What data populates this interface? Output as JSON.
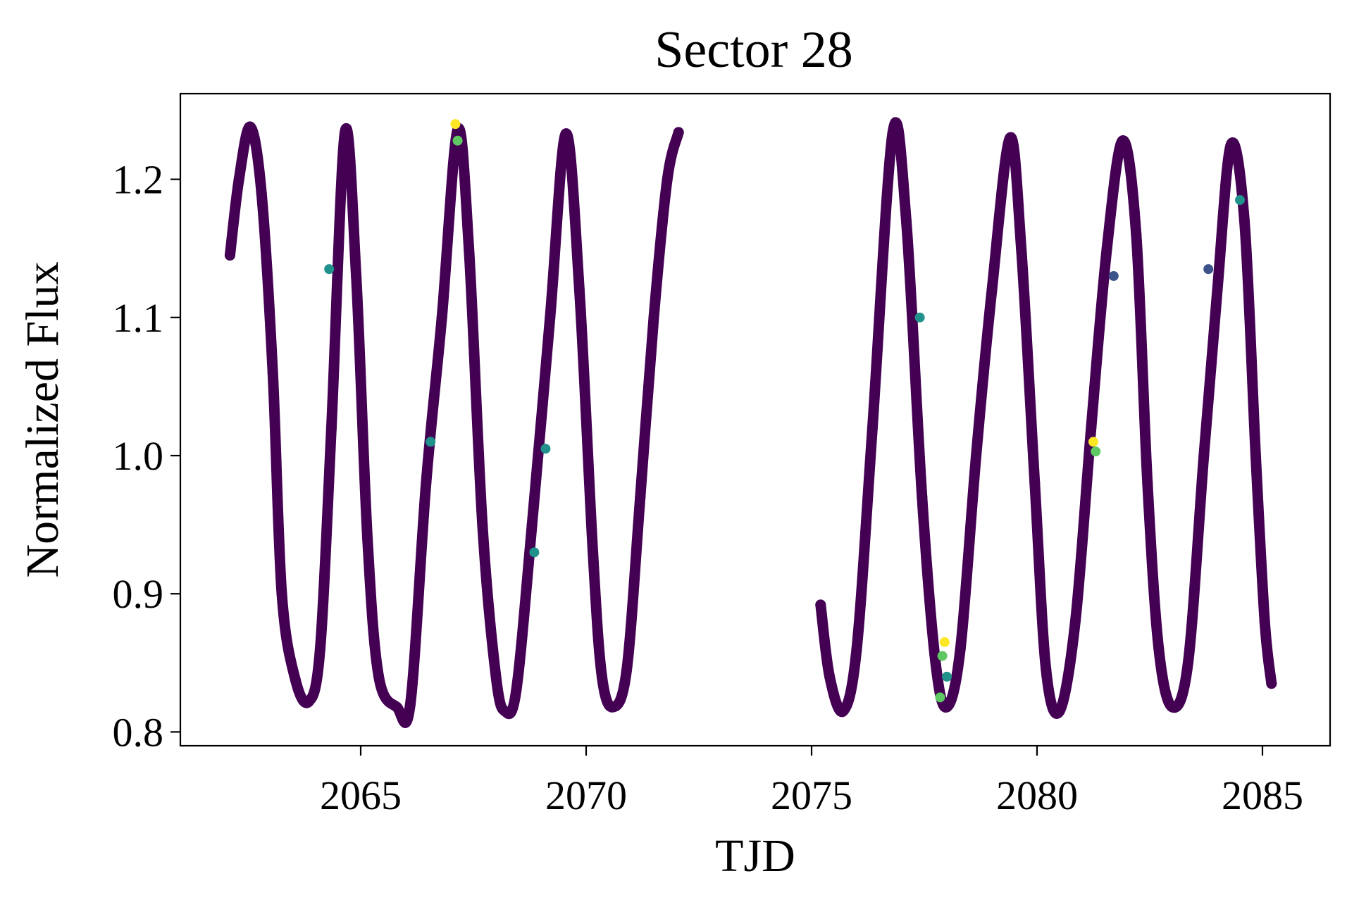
{
  "chart_data": {
    "type": "scatter",
    "title": "Sector 28",
    "xlabel": "TJD",
    "ylabel": "Normalized Flux",
    "xlim": [
      2061.0,
      2086.5
    ],
    "ylim": [
      0.79,
      1.262
    ],
    "xticks": [
      2065,
      2070,
      2075,
      2080,
      2085
    ],
    "xtick_labels": [
      "2065",
      "2070",
      "2075",
      "2080",
      "2085"
    ],
    "yticks": [
      0.8,
      0.9,
      1.0,
      1.1,
      1.2
    ],
    "ytick_labels": [
      "0.8",
      "0.9",
      "1.0",
      "1.1",
      "1.2"
    ],
    "grid": false,
    "legend": "none",
    "colormap": "viridis",
    "main_color": "#440154",
    "highlight_colors": [
      "#21918c",
      "#3b528b",
      "#5ec962",
      "#fde725"
    ],
    "segments": [
      {
        "x": [
          2062.1,
          2062.3,
          2062.55,
          2062.8,
          2063.05,
          2063.25,
          2063.55,
          2063.85,
          2064.1,
          2064.35,
          2064.65,
          2064.9,
          2065.15,
          2065.4,
          2065.8,
          2066.1,
          2066.45,
          2066.8,
          2067.15,
          2067.4,
          2067.7,
          2068.0,
          2068.2,
          2068.45,
          2068.8,
          2069.2,
          2069.55,
          2069.85,
          2070.15,
          2070.35,
          2070.6,
          2070.9,
          2071.2,
          2071.5,
          2071.8,
          2072.05
        ],
        "y": [
          1.145,
          1.2,
          1.238,
          1.19,
          1.06,
          0.9,
          0.838,
          0.822,
          0.86,
          1.02,
          1.234,
          1.13,
          0.94,
          0.84,
          0.818,
          0.82,
          0.98,
          1.1,
          1.236,
          1.15,
          0.95,
          0.84,
          0.815,
          0.83,
          0.95,
          1.1,
          1.233,
          1.12,
          0.93,
          0.84,
          0.818,
          0.845,
          0.97,
          1.1,
          1.2,
          1.234
        ]
      },
      {
        "x": [
          2075.2,
          2075.4,
          2075.7,
          2076.0,
          2076.35,
          2076.8,
          2077.1,
          2077.45,
          2077.75,
          2078.0,
          2078.3,
          2078.65,
          2079.0,
          2079.4,
          2079.65,
          2079.95,
          2080.2,
          2080.5,
          2080.85,
          2081.2,
          2081.55,
          2081.9,
          2082.2,
          2082.45,
          2082.7,
          2083.0,
          2083.35,
          2083.7,
          2084.0,
          2084.3,
          2084.6,
          2084.85,
          2085.05,
          2085.2
        ],
        "y": [
          0.892,
          0.84,
          0.815,
          0.86,
          1.02,
          1.234,
          1.17,
          0.97,
          0.85,
          0.818,
          0.86,
          1.0,
          1.12,
          1.23,
          1.15,
          0.98,
          0.845,
          0.815,
          0.88,
          1.02,
          1.15,
          1.228,
          1.16,
          0.98,
          0.86,
          0.818,
          0.85,
          1.0,
          1.12,
          1.225,
          1.17,
          1.0,
          0.88,
          0.835
        ]
      }
    ],
    "highlight_points": [
      {
        "x": 2067.1,
        "y": 1.24,
        "color": "#fde725"
      },
      {
        "x": 2067.15,
        "y": 1.228,
        "color": "#5ec962"
      },
      {
        "x": 2064.3,
        "y": 1.135,
        "color": "#21918c"
      },
      {
        "x": 2066.55,
        "y": 1.01,
        "color": "#21918c"
      },
      {
        "x": 2068.85,
        "y": 0.93,
        "color": "#21918c"
      },
      {
        "x": 2069.1,
        "y": 1.005,
        "color": "#21918c"
      },
      {
        "x": 2077.4,
        "y": 1.1,
        "color": "#21918c"
      },
      {
        "x": 2077.95,
        "y": 0.865,
        "color": "#fde725"
      },
      {
        "x": 2077.9,
        "y": 0.855,
        "color": "#5ec962"
      },
      {
        "x": 2077.85,
        "y": 0.825,
        "color": "#5ec962"
      },
      {
        "x": 2078.0,
        "y": 0.84,
        "color": "#21918c"
      },
      {
        "x": 2081.25,
        "y": 1.01,
        "color": "#fde725"
      },
      {
        "x": 2081.3,
        "y": 1.003,
        "color": "#5ec962"
      },
      {
        "x": 2081.7,
        "y": 1.13,
        "color": "#3b528b"
      },
      {
        "x": 2084.5,
        "y": 1.185,
        "color": "#21918c"
      },
      {
        "x": 2083.8,
        "y": 1.135,
        "color": "#3b528b"
      }
    ]
  }
}
